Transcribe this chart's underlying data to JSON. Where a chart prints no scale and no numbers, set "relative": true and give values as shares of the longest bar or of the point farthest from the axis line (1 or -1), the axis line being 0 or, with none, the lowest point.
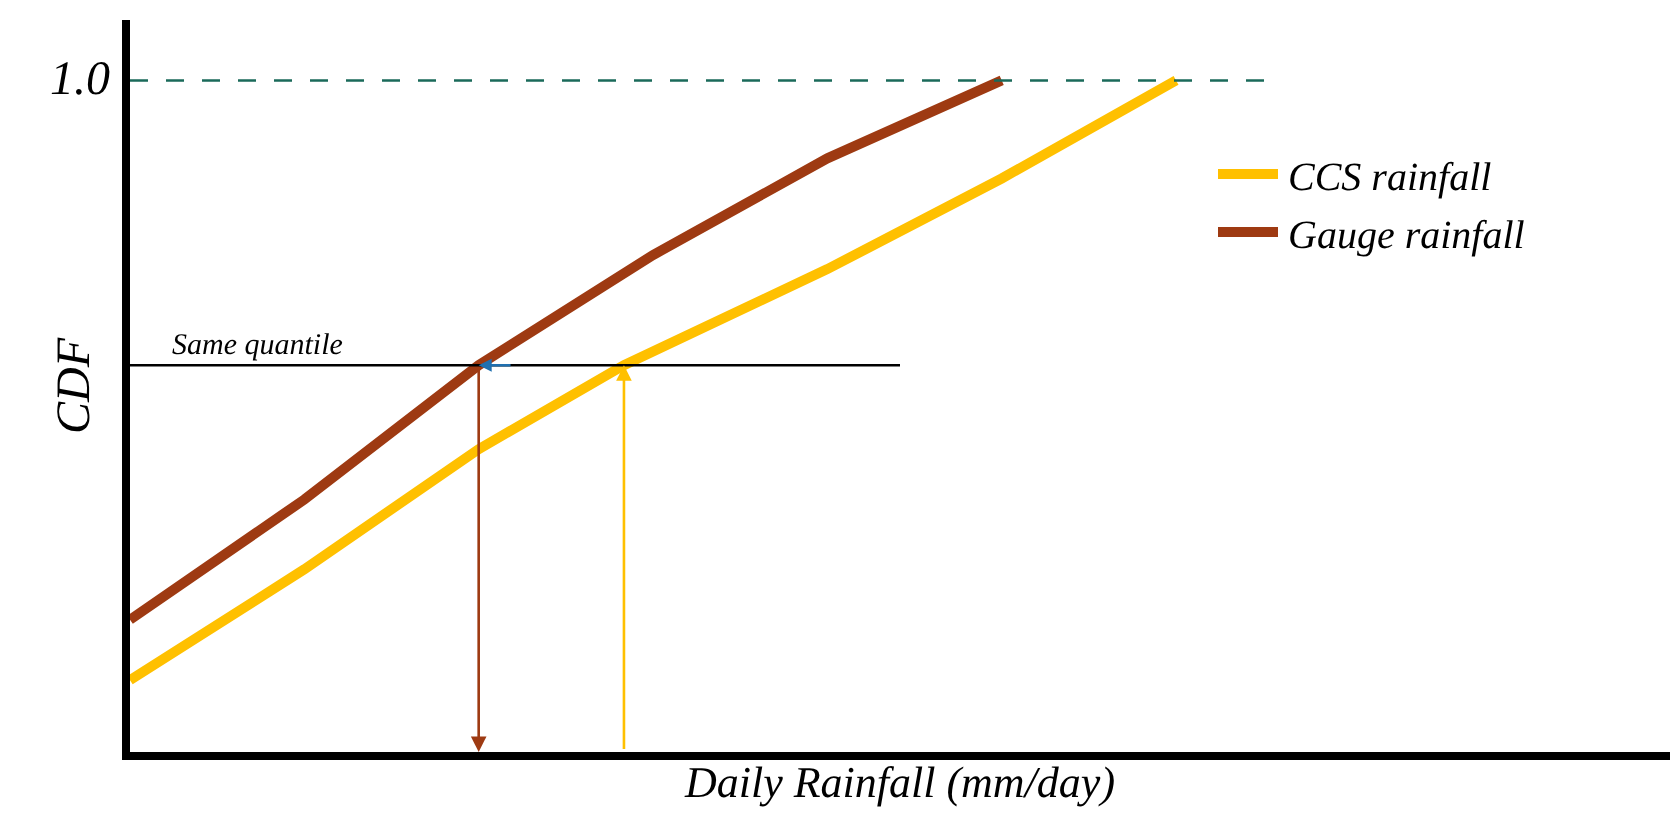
{
  "chart_data": {
    "type": "line",
    "relative": true,
    "xlabel": "Daily Rainfall (mm/day)",
    "ylabel": "CDF",
    "tick_labels": false,
    "legend": "right",
    "marker": "none",
    "line_style": "solid",
    "categories": [
      null,
      null,
      null,
      null,
      null,
      null,
      null,
      null,
      null,
      null,
      null,
      null,
      null,
      null,
      null,
      null,
      null,
      null,
      null,
      null,
      null,
      null,
      null,
      null,
      null,
      null,
      null,
      null,
      null,
      null,
      null,
      null,
      null,
      null,
      null,
      null,
      null,
      null,
      null,
      null,
      null,
      null,
      null,
      null,
      null,
      null,
      null,
      null,
      null,
      null,
      null,
      null,
      null,
      null
    ],
    "series": [
      {
        "name": "CCS rainfall",
        "color": "#ffc000",
        "values": [
          0.107,
          null,
          null,
          null,
          null,
          null,
          0.272,
          null,
          null,
          null,
          null,
          null,
          0.451,
          null,
          null,
          null,
          null,
          0.576,
          null,
          null,
          null,
          null,
          null,
          null,
          0.719,
          null,
          null,
          null,
          null,
          null,
          0.854,
          null,
          null,
          null,
          null,
          null,
          1,
          null,
          null,
          null,
          null,
          null,
          null,
          null,
          null,
          null,
          null,
          null,
          null,
          null,
          null,
          null,
          null,
          null
        ]
      },
      {
        "name": "Gauge rainfall",
        "color": "#9e3a12",
        "values": [
          0.197,
          null,
          null,
          null,
          null,
          null,
          0.376,
          null,
          null,
          null,
          null,
          null,
          0.576,
          null,
          null,
          null,
          null,
          null,
          0.74,
          null,
          null,
          null,
          null,
          null,
          0.884,
          null,
          null,
          null,
          null,
          null,
          1,
          null,
          null,
          null,
          null,
          null,
          null,
          null,
          null,
          null,
          null,
          null,
          null,
          null,
          null,
          null,
          null,
          null,
          null,
          null,
          null,
          null,
          null,
          null
        ]
      }
    ],
    "ref_lines": [
      {
        "axis": "y",
        "value": 1,
        "label": "1.0",
        "color": "#1a6a5a",
        "line_style": "dashed"
      },
      {
        "axis": "y",
        "value": 0.576,
        "label": "Same quantile",
        "color": "#000000",
        "line_style": "solid"
      }
    ]
  }
}
